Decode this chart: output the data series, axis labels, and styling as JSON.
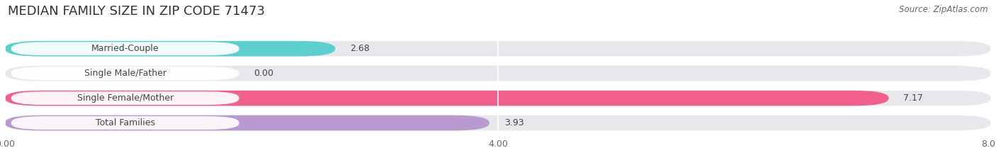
{
  "title": "MEDIAN FAMILY SIZE IN ZIP CODE 71473",
  "source_text": "Source: ZipAtlas.com",
  "categories": [
    "Married-Couple",
    "Single Male/Father",
    "Single Female/Mother",
    "Total Families"
  ],
  "values": [
    2.68,
    0.0,
    7.17,
    3.93
  ],
  "bar_colors": [
    "#5ecfcf",
    "#aab8e8",
    "#f0608a",
    "#b89ad0"
  ],
  "xlim": [
    0,
    8.0
  ],
  "xticks": [
    0.0,
    4.0,
    8.0
  ],
  "xticklabels": [
    "0.00",
    "4.00",
    "8.00"
  ],
  "background_color": "#ffffff",
  "bar_background_color": "#e8e8ec",
  "title_fontsize": 13,
  "label_fontsize": 9,
  "value_fontsize": 9,
  "source_fontsize": 8.5,
  "bar_height": 0.62,
  "figsize": [
    14.06,
    2.33
  ],
  "dpi": 100
}
